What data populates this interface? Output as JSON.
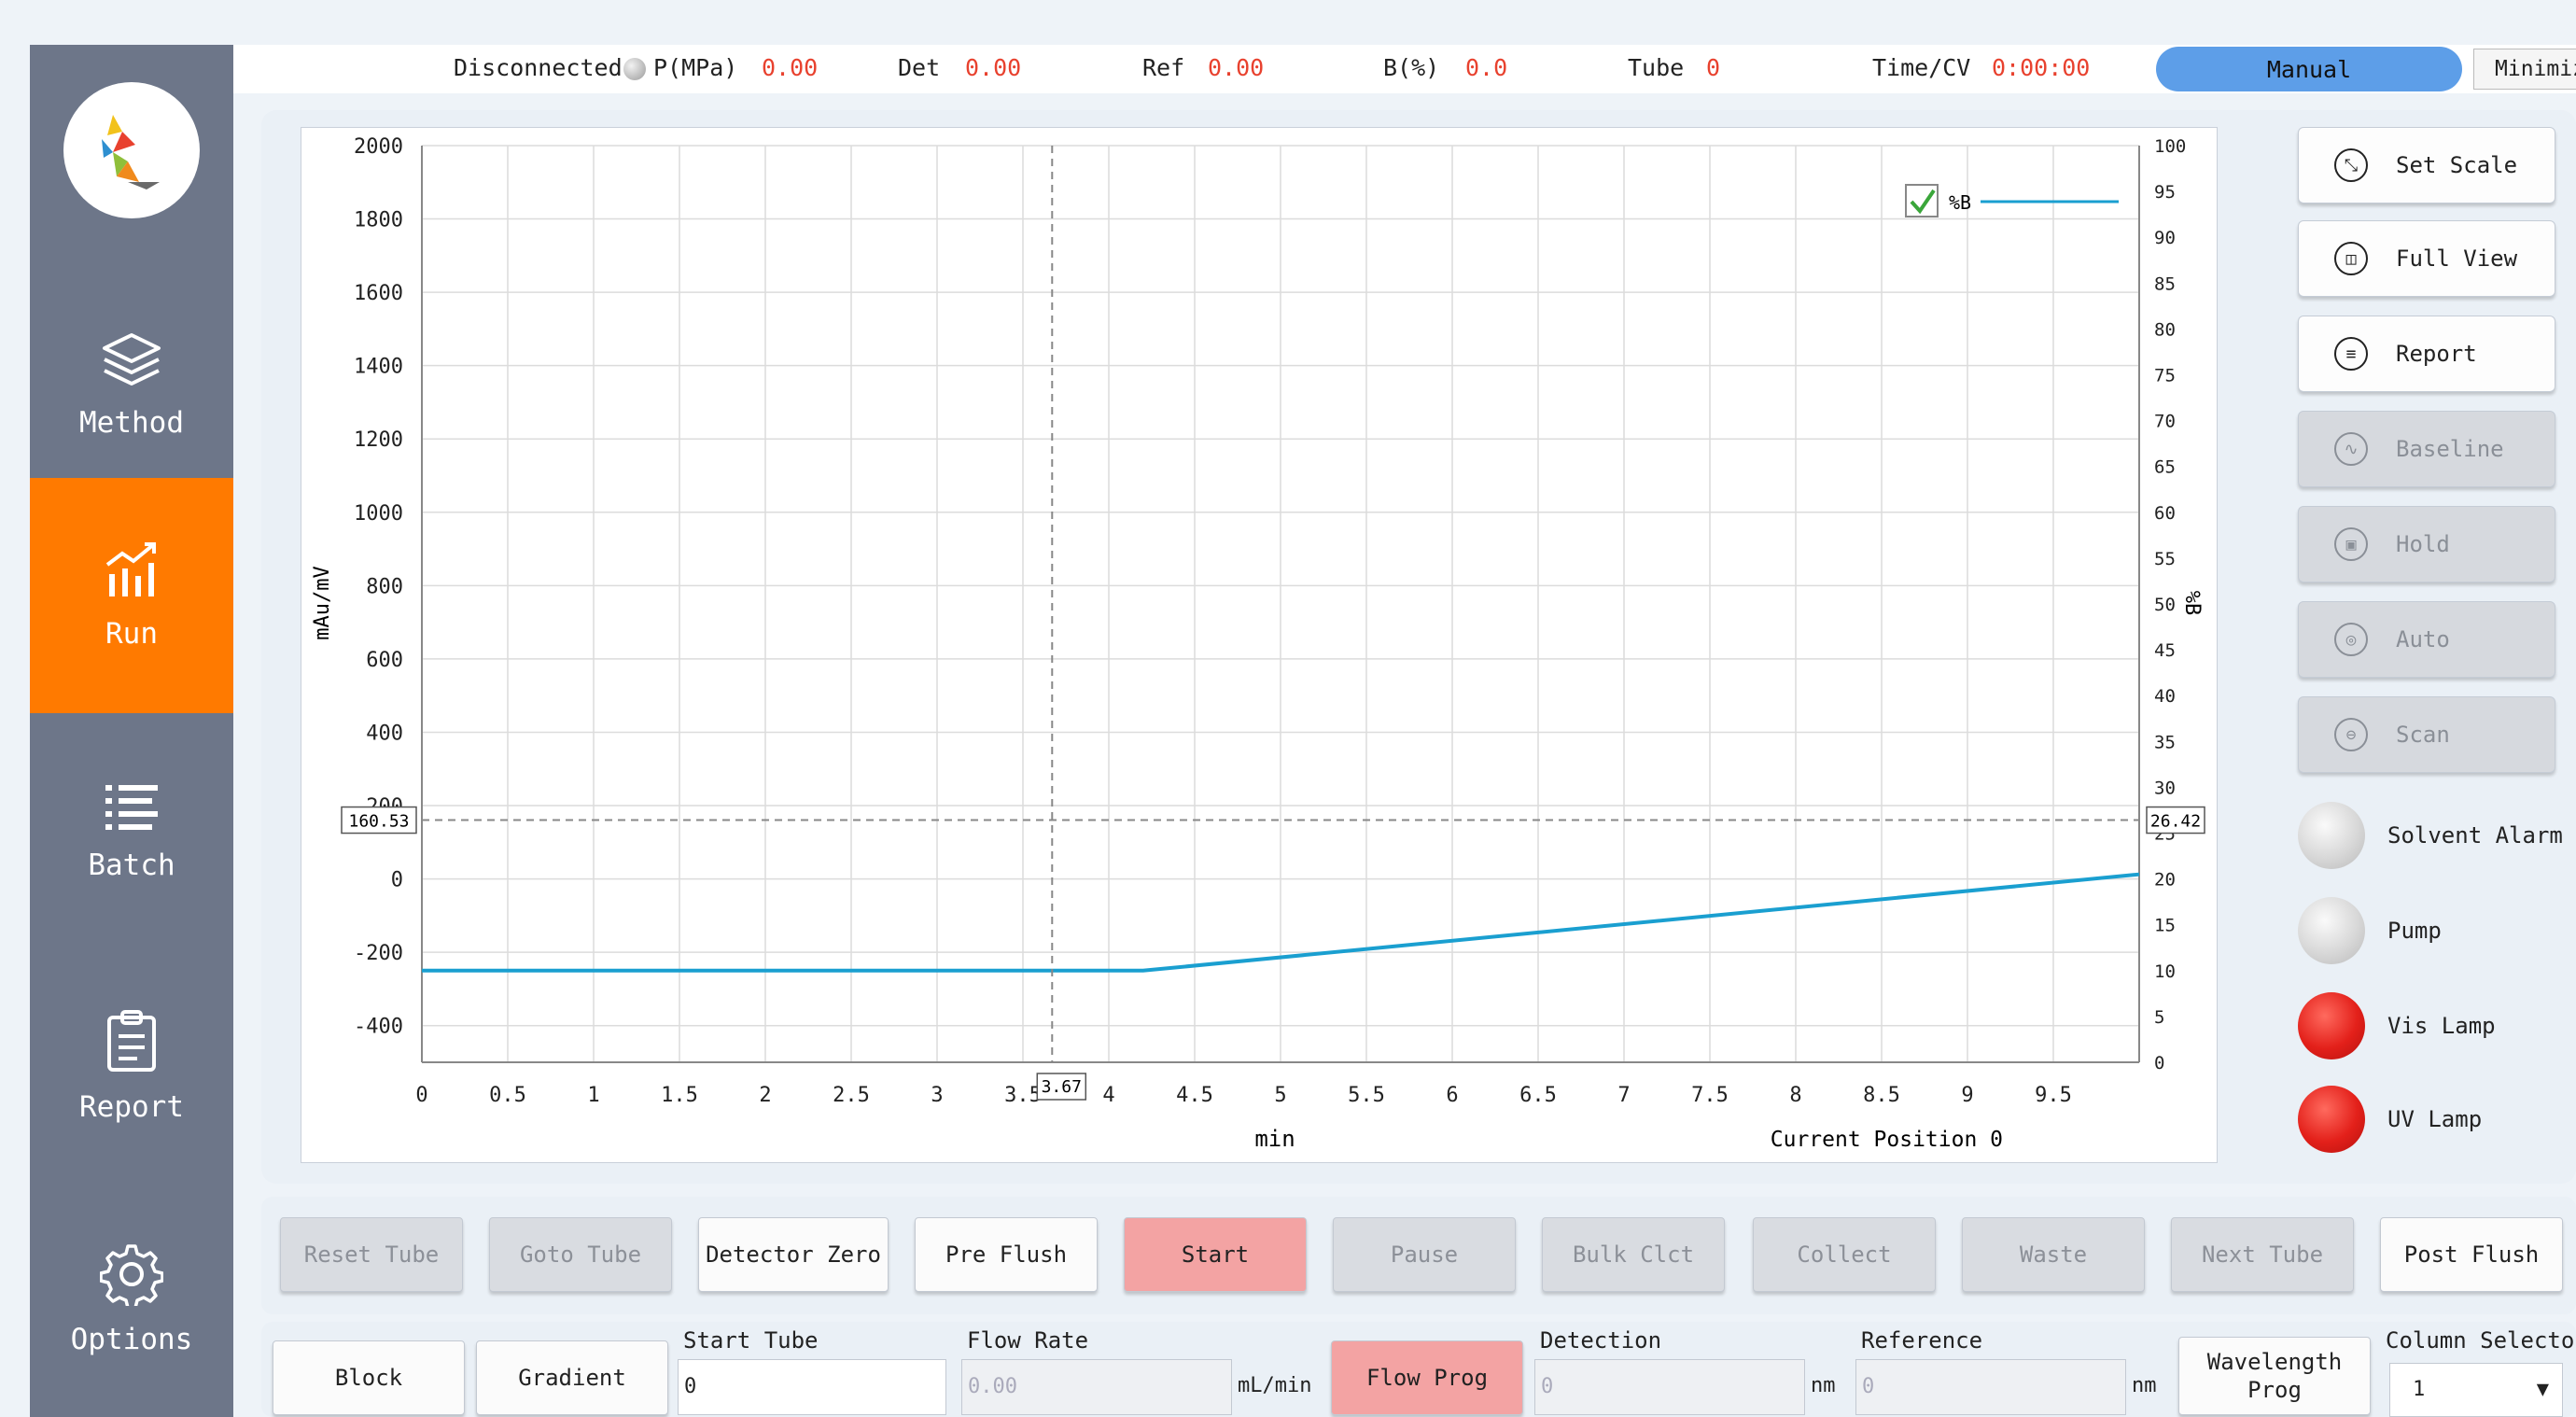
{
  "status": {
    "connection": "Disconnected",
    "pressure_label": "P(MPa)",
    "pressure_value": "0.00",
    "det_label": "Det",
    "det_value": "0.00",
    "ref_label": "Ref",
    "ref_value": "0.00",
    "b_label": "B(%)",
    "b_value": "0.0",
    "tube_label": "Tube",
    "tube_value": "0",
    "time_label": "Time/CV",
    "time_value": "0:00:00",
    "mode": "Manual",
    "minimize": "Minimize"
  },
  "sidebar": {
    "items": [
      {
        "label": "Method",
        "icon": "layers-icon",
        "active": false
      },
      {
        "label": "Run",
        "icon": "chart-icon",
        "active": true
      },
      {
        "label": "Batch",
        "icon": "list-icon",
        "active": false
      },
      {
        "label": "Report",
        "icon": "clipboard-icon",
        "active": false
      },
      {
        "label": "Options",
        "icon": "gear-icon",
        "active": false
      }
    ]
  },
  "chart": {
    "current_position_label": "Current Position 0",
    "cursor_x_label": "3.67",
    "cursor_y_left_label": "160.53",
    "cursor_y_right_label": "26.42",
    "legend_label": "%B"
  },
  "chart_data": {
    "type": "line",
    "xlabel": "min",
    "ylabel": "mAu/mV",
    "y2label": "%B",
    "xlim": [
      0,
      10
    ],
    "ylim": [
      -500,
      2000
    ],
    "y2lim": [
      0,
      100
    ],
    "grid": true,
    "legend_position": "top-right",
    "x_ticks": [
      "0",
      "0.5",
      "1",
      "1.5",
      "2",
      "2.5",
      "3",
      "3.5",
      "4",
      "4.5",
      "5",
      "5.5",
      "6",
      "6.5",
      "7",
      "7.5",
      "8",
      "8.5",
      "9",
      "9.5"
    ],
    "y_ticks": [
      "2000",
      "1800",
      "1600",
      "1400",
      "1200",
      "1000",
      "800",
      "600",
      "400",
      "200",
      "0",
      "-200",
      "-400"
    ],
    "y2_ticks": [
      "100",
      "95",
      "90",
      "85",
      "80",
      "75",
      "70",
      "65",
      "60",
      "55",
      "50",
      "45",
      "40",
      "35",
      "30",
      "25",
      "20",
      "15",
      "10",
      "5",
      "0"
    ],
    "series": [
      {
        "name": "%B",
        "axis": "right",
        "color": "#1a9fd0",
        "x": [
          0,
          4.2,
          10
        ],
        "y": [
          10,
          10,
          20.5
        ]
      }
    ],
    "cursor": {
      "x": 3.67,
      "y": 160.53
    }
  },
  "actions": [
    {
      "label": "Set Scale",
      "icon": "scale-icon",
      "enabled": true
    },
    {
      "label": "Full View",
      "icon": "fullview-icon",
      "enabled": true
    },
    {
      "label": "Report",
      "icon": "report-icon",
      "enabled": true
    },
    {
      "label": "Baseline",
      "icon": "baseline-icon",
      "enabled": false
    },
    {
      "label": "Hold",
      "icon": "lock-icon",
      "enabled": false
    },
    {
      "label": "Auto",
      "icon": "auto-icon",
      "enabled": false
    },
    {
      "label": "Scan",
      "icon": "scan-icon",
      "enabled": false
    }
  ],
  "indicators": [
    {
      "label": "Solvent Alarm",
      "state": "gray"
    },
    {
      "label": "Pump",
      "state": "gray"
    },
    {
      "label": "Vis Lamp",
      "state": "red"
    },
    {
      "label": "UV Lamp",
      "state": "red"
    }
  ],
  "controls": [
    {
      "label": "Reset Tube",
      "enabled": false
    },
    {
      "label": "Goto Tube",
      "enabled": false
    },
    {
      "label": "Detector Zero",
      "enabled": true
    },
    {
      "label": "Pre Flush",
      "enabled": true
    },
    {
      "label": "Start",
      "enabled": true,
      "highlight": true
    },
    {
      "label": "Pause",
      "enabled": false
    },
    {
      "label": "Bulk Clct",
      "enabled": false
    },
    {
      "label": "Collect",
      "enabled": false
    },
    {
      "label": "Waste",
      "enabled": false
    },
    {
      "label": "Next Tube",
      "enabled": false
    },
    {
      "label": "Post Flush",
      "enabled": true
    }
  ],
  "params": {
    "block_label": "Block",
    "gradient_label": "Gradient",
    "start_tube_label": "Start Tube",
    "start_tube_value": "0",
    "flow_rate_label": "Flow Rate",
    "flow_rate_value": "0.00",
    "flow_rate_unit": "mL/min",
    "flow_prog_label": "Flow Prog",
    "detection_label": "Detection",
    "detection_value": "0",
    "detection_unit": "nm",
    "reference_label": "Reference",
    "reference_value": "0",
    "reference_unit": "nm",
    "wavelength_prog_label": "Wavelength Prog",
    "column_selector_label": "Column Selector",
    "column_selector_value": "1"
  }
}
